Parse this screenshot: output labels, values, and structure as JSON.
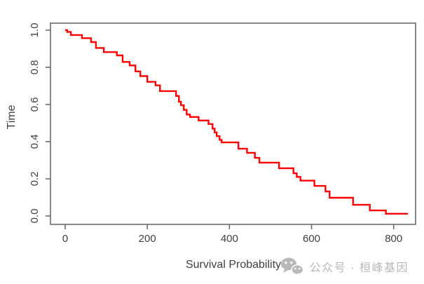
{
  "figure": {
    "background": "#ffffff",
    "curve_color": "#fe0000",
    "axis_color": "#6b6b6b",
    "text_color": "#3f3f3f",
    "watermark_color": "#b9b9b9"
  },
  "chart_data": {
    "type": "line",
    "subtype": "step-survival-curve",
    "title": "",
    "xlabel": "Survival Probability",
    "ylabel": "Time",
    "x_ticks": [
      0,
      200,
      400,
      600,
      800
    ],
    "x_tick_labels": [
      "0",
      "200",
      "400",
      "600",
      "800"
    ],
    "y_ticks": [
      0.0,
      0.2,
      0.4,
      0.6,
      0.8,
      1.0
    ],
    "y_tick_labels": [
      "0.0",
      "0.2",
      "0.4",
      "0.6",
      "0.8",
      "1.0"
    ],
    "xlim": [
      -36,
      853
    ],
    "ylim": [
      -0.045,
      1.038
    ],
    "grid": false,
    "legend": "none",
    "series": [
      {
        "name": "survival-step-curve",
        "color": "#fe0000",
        "start": [
          0,
          1.0
        ],
        "end_x": 835,
        "steps": [
          [
            5,
            0.99
          ],
          [
            14,
            0.974
          ],
          [
            41,
            0.957
          ],
          [
            63,
            0.936
          ],
          [
            75,
            0.904
          ],
          [
            94,
            0.882
          ],
          [
            126,
            0.864
          ],
          [
            140,
            0.829
          ],
          [
            157,
            0.81
          ],
          [
            171,
            0.778
          ],
          [
            183,
            0.753
          ],
          [
            200,
            0.722
          ],
          [
            220,
            0.703
          ],
          [
            231,
            0.672
          ],
          [
            270,
            0.646
          ],
          [
            277,
            0.615
          ],
          [
            282,
            0.596
          ],
          [
            289,
            0.571
          ],
          [
            296,
            0.546
          ],
          [
            304,
            0.533
          ],
          [
            325,
            0.514
          ],
          [
            349,
            0.495
          ],
          [
            359,
            0.47
          ],
          [
            364,
            0.45
          ],
          [
            369,
            0.43
          ],
          [
            376,
            0.41
          ],
          [
            381,
            0.396
          ],
          [
            422,
            0.362
          ],
          [
            443,
            0.34
          ],
          [
            462,
            0.313
          ],
          [
            473,
            0.287
          ],
          [
            521,
            0.257
          ],
          [
            556,
            0.23
          ],
          [
            564,
            0.21
          ],
          [
            573,
            0.19
          ],
          [
            607,
            0.162
          ],
          [
            634,
            0.132
          ],
          [
            644,
            0.098
          ],
          [
            701,
            0.06
          ],
          [
            742,
            0.03
          ],
          [
            781,
            0.012
          ]
        ]
      }
    ]
  },
  "watermark": {
    "icon": "wechat-icon",
    "text": "公众号 · 桓峰基因"
  }
}
